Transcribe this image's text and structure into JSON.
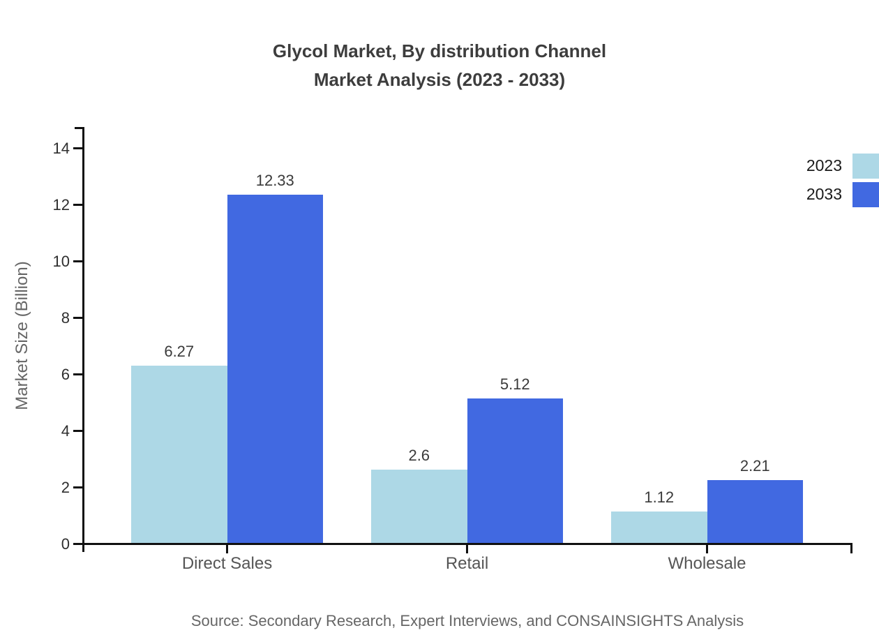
{
  "title": {
    "line1": "Glycol Market, By distribution Channel",
    "line2": "Market Analysis (2023 - 2033)"
  },
  "source_note": "Source: Secondary Research, Expert Interviews, and CONSAINSIGHTS Analysis",
  "colors": {
    "series_2023": "#ADD8E6",
    "series_2033": "#4169E1",
    "axis": "#111111",
    "title_text": "#3d3d3d",
    "muted_text": "#666666"
  },
  "chart_data": {
    "type": "bar",
    "title": "Glycol Market, By distribution Channel Market Analysis (2023 - 2033)",
    "categories": [
      "Direct Sales",
      "Retail",
      "Wholesale"
    ],
    "series": [
      {
        "name": "2023",
        "color": "#ADD8E6",
        "values": [
          6.27,
          2.6,
          1.12
        ],
        "labels": [
          "6.27",
          "2.6",
          "1.12"
        ]
      },
      {
        "name": "2033",
        "color": "#4169E1",
        "values": [
          12.33,
          5.12,
          2.21
        ],
        "labels": [
          "12.33",
          "5.12",
          "2.21"
        ]
      }
    ],
    "xlabel": "",
    "ylabel": "Market Size (Billion)",
    "ylim": [
      0,
      14.75
    ],
    "yticks": [
      0,
      2,
      4,
      6,
      8,
      10,
      12,
      14
    ],
    "grid": false,
    "legend_position": "top-right",
    "bar_value_labels": true
  }
}
